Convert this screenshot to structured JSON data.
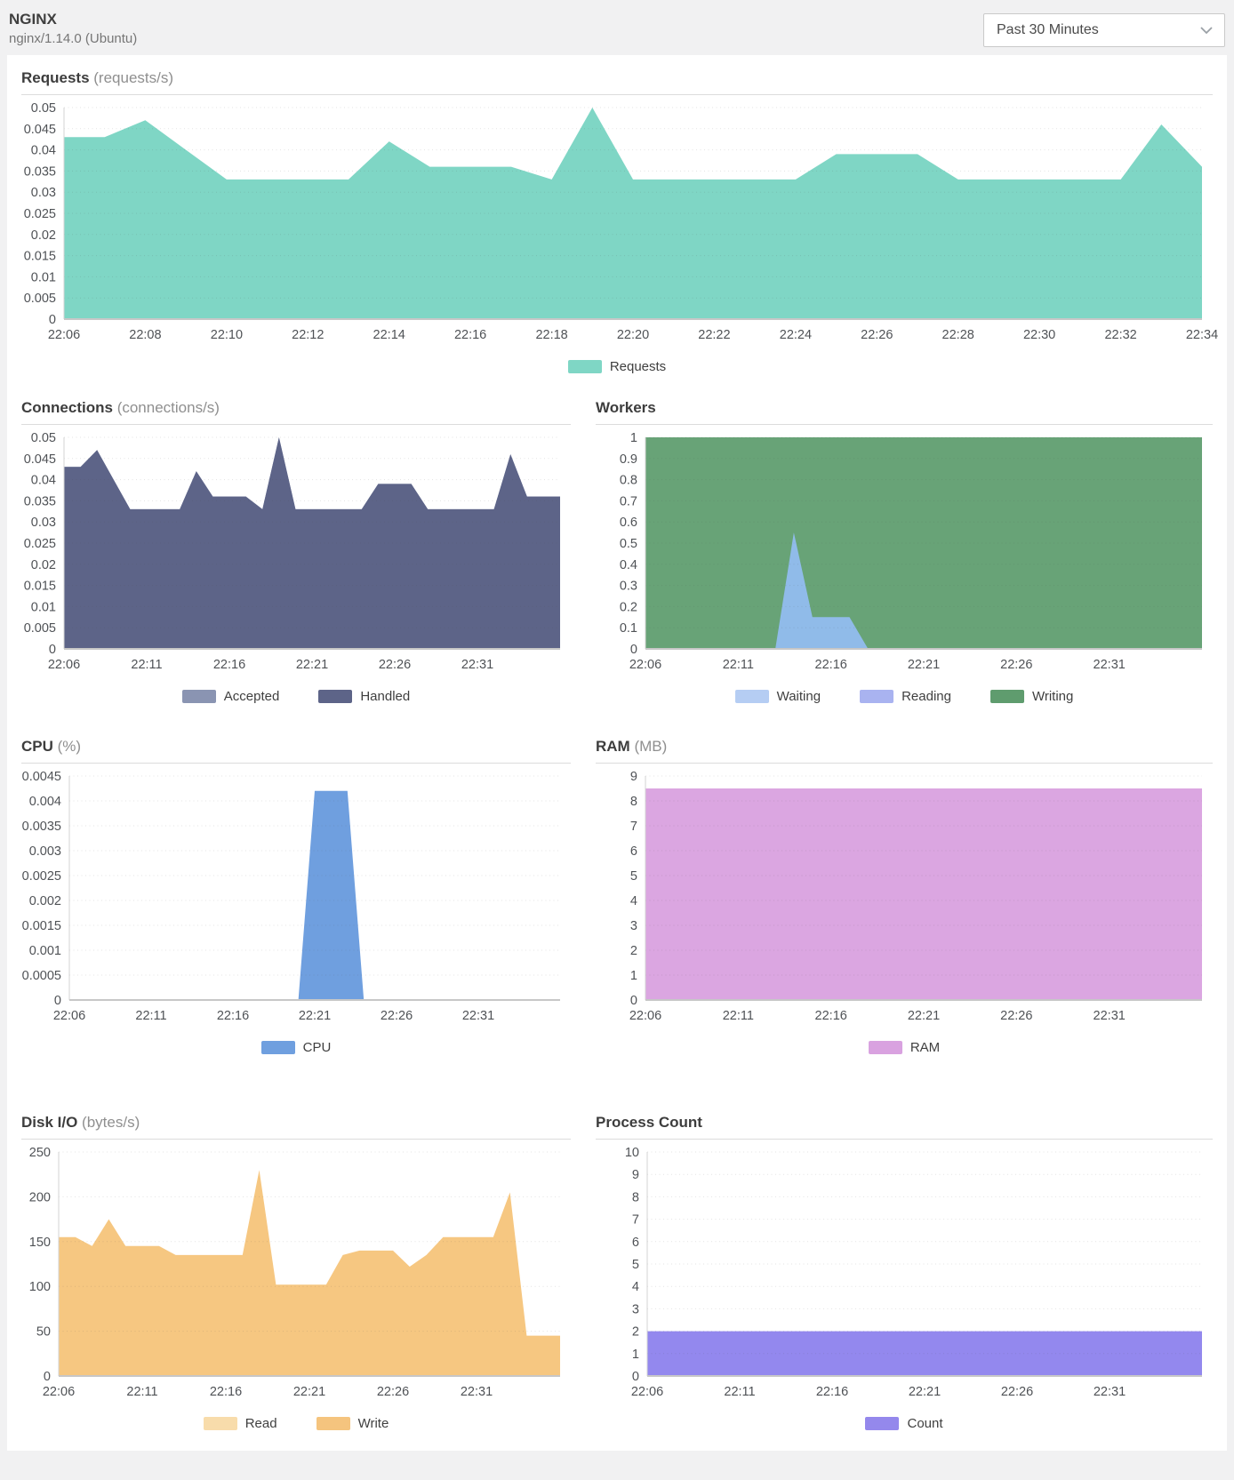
{
  "header": {
    "title": "NGINX",
    "subtitle": "nginx/1.14.0 (Ubuntu)",
    "time_range": "Past 30 Minutes"
  },
  "colors": {
    "page_background": "#f1f1f2",
    "panel_background": "#ffffff",
    "requests_teal": "#7fd6c5",
    "handled_slate": "#5d6488",
    "accepted_slate_light": "#8a94b2",
    "writing_green": "#68a377",
    "waiting_blue": "#90bbe9",
    "reading_periwinkle": "#a9b3f0",
    "cpu_blue": "#6f9fdf",
    "ram_orchid": "#dba6e1",
    "disk_orange": "#f6c781",
    "disk_read_light": "#f8dcab",
    "count_purple": "#9388ee"
  },
  "charts": [
    {
      "id": "requests",
      "type": "area",
      "title": "Requests",
      "unit": "(requests/s)",
      "x_start": "22:06",
      "x_step_minutes": 1,
      "x_labels": [
        "22:06",
        "22:08",
        "22:10",
        "22:12",
        "22:14",
        "22:16",
        "22:18",
        "22:20",
        "22:22",
        "22:24",
        "22:26",
        "22:28",
        "22:30",
        "22:32",
        "22:34"
      ],
      "y_ticks": [
        "0.05",
        "0.045",
        "0.04",
        "0.035",
        "0.03",
        "0.025",
        "0.02",
        "0.015",
        "0.01",
        "0.005",
        "0"
      ],
      "y_max": 0.05,
      "grid": true,
      "series": [
        {
          "name": "Requests",
          "color": "#7fd6c5",
          "values": [
            0.043,
            0.043,
            0.047,
            0.04,
            0.033,
            0.033,
            0.033,
            0.033,
            0.042,
            0.036,
            0.036,
            0.036,
            0.033,
            0.05,
            0.033,
            0.033,
            0.033,
            0.033,
            0.033,
            0.039,
            0.039,
            0.039,
            0.033,
            0.033,
            0.033,
            0.033,
            0.033,
            0.046,
            0.036
          ]
        }
      ],
      "legend": [
        {
          "label": "Requests",
          "color": "#7fd6c5"
        }
      ]
    },
    {
      "id": "connections",
      "type": "area",
      "title": "Connections",
      "unit": "(connections/s)",
      "x_start": "22:06",
      "x_step_minutes": 1,
      "x_labels": [
        "22:06",
        "22:11",
        "22:16",
        "22:21",
        "22:26",
        "22:31"
      ],
      "y_ticks": [
        "0.05",
        "0.045",
        "0.04",
        "0.035",
        "0.03",
        "0.025",
        "0.02",
        "0.015",
        "0.01",
        "0.005",
        "0"
      ],
      "y_max": 0.05,
      "grid": true,
      "series": [
        {
          "name": "Accepted",
          "color": "#8a94b2",
          "values": [
            0.043,
            0.043,
            0.047,
            0.04,
            0.033,
            0.033,
            0.033,
            0.033,
            0.042,
            0.036,
            0.036,
            0.036,
            0.033,
            0.05,
            0.033,
            0.033,
            0.033,
            0.033,
            0.033,
            0.039,
            0.039,
            0.039,
            0.033,
            0.033,
            0.033,
            0.033,
            0.033,
            0.046,
            0.036
          ]
        },
        {
          "name": "Handled",
          "color": "#5d6488",
          "values": [
            0.043,
            0.043,
            0.047,
            0.04,
            0.033,
            0.033,
            0.033,
            0.033,
            0.042,
            0.036,
            0.036,
            0.036,
            0.033,
            0.05,
            0.033,
            0.033,
            0.033,
            0.033,
            0.033,
            0.039,
            0.039,
            0.039,
            0.033,
            0.033,
            0.033,
            0.033,
            0.033,
            0.046,
            0.036
          ]
        }
      ],
      "legend": [
        {
          "label": "Accepted",
          "color": "#8a94b2"
        },
        {
          "label": "Handled",
          "color": "#5d6488"
        }
      ]
    },
    {
      "id": "workers",
      "type": "area",
      "title": "Workers",
      "unit": "",
      "x_start": "22:06",
      "x_step_minutes": 1,
      "x_labels": [
        "22:06",
        "22:11",
        "22:16",
        "22:21",
        "22:26",
        "22:31"
      ],
      "y_ticks": [
        "1",
        "0.9",
        "0.8",
        "0.7",
        "0.6",
        "0.5",
        "0.4",
        "0.3",
        "0.2",
        "0.1",
        "0"
      ],
      "y_max": 1,
      "grid": true,
      "series": [
        {
          "name": "Writing",
          "color": "#68a377",
          "values": [
            1,
            1,
            1,
            1,
            1,
            1,
            1,
            1,
            1,
            1,
            1,
            1,
            1,
            1,
            1,
            1,
            1,
            1,
            1,
            1,
            1,
            1,
            1,
            1,
            1,
            1,
            1,
            1,
            1
          ]
        },
        {
          "name": "Reading",
          "color": "#a9b3f0",
          "values": [
            0,
            0,
            0,
            0,
            0,
            0,
            0,
            0,
            0,
            0,
            0,
            0,
            0,
            0,
            0,
            0,
            0,
            0,
            0,
            0,
            0,
            0,
            0,
            0,
            0,
            0,
            0,
            0,
            0
          ]
        },
        {
          "name": "Waiting",
          "color": "#90bbe9",
          "values": [
            0,
            0,
            0,
            0,
            0,
            0,
            0,
            0,
            0.55,
            0.15,
            0.15,
            0.15,
            0,
            0,
            0,
            0,
            0,
            0,
            0,
            0,
            0,
            0,
            0,
            0,
            0,
            0,
            0,
            0,
            0
          ]
        }
      ],
      "legend": [
        {
          "label": "Waiting",
          "color": "#b5cdf3"
        },
        {
          "label": "Reading",
          "color": "#a9b3f0"
        },
        {
          "label": "Writing",
          "color": "#5f9c6e"
        }
      ]
    },
    {
      "id": "cpu",
      "type": "area",
      "title": "CPU",
      "unit": "(%)",
      "x_start": "22:06",
      "x_step_minutes": 1,
      "x_labels": [
        "22:06",
        "22:11",
        "22:16",
        "22:21",
        "22:26",
        "22:31"
      ],
      "y_ticks": [
        "0.0045",
        "0.004",
        "0.0035",
        "0.003",
        "0.0025",
        "0.002",
        "0.0015",
        "0.001",
        "0.0005",
        "0"
      ],
      "y_max": 0.0045,
      "grid": true,
      "series": [
        {
          "name": "CPU",
          "color": "#6f9fdf",
          "values": [
            0,
            0,
            0,
            0,
            0,
            0,
            0,
            0,
            0,
            0,
            0,
            0,
            0,
            0,
            0,
            0.0042,
            0.0042,
            0.0042,
            0,
            0,
            0,
            0,
            0,
            0,
            0,
            0,
            0,
            0,
            0
          ]
        }
      ],
      "legend": [
        {
          "label": "CPU",
          "color": "#6f9fdf"
        }
      ]
    },
    {
      "id": "ram",
      "type": "area",
      "title": "RAM",
      "unit": "(MB)",
      "x_start": "22:06",
      "x_step_minutes": 1,
      "x_labels": [
        "22:06",
        "22:11",
        "22:16",
        "22:21",
        "22:26",
        "22:31"
      ],
      "y_ticks": [
        "9",
        "8",
        "7",
        "6",
        "5",
        "4",
        "3",
        "2",
        "1",
        "0"
      ],
      "y_max": 9,
      "grid": true,
      "series": [
        {
          "name": "RAM",
          "color": "#dba6e1",
          "values": [
            8.5,
            8.5,
            8.5,
            8.5,
            8.5,
            8.5,
            8.5,
            8.5,
            8.5,
            8.5,
            8.5,
            8.5,
            8.5,
            8.5,
            8.5,
            8.5,
            8.5,
            8.5,
            8.5,
            8.5,
            8.5,
            8.5,
            8.5,
            8.5,
            8.5,
            8.5,
            8.5,
            8.5,
            8.5
          ]
        }
      ],
      "legend": [
        {
          "label": "RAM",
          "color": "#d9a2e0"
        }
      ]
    },
    {
      "id": "disk",
      "type": "area",
      "title": "Disk I/O",
      "unit": "(bytes/s)",
      "x_start": "22:06",
      "x_step_minutes": 1,
      "x_labels": [
        "22:06",
        "22:11",
        "22:16",
        "22:21",
        "22:26",
        "22:31"
      ],
      "y_ticks": [
        "250",
        "200",
        "150",
        "100",
        "50",
        "0"
      ],
      "y_max": 250,
      "grid": true,
      "series": [
        {
          "name": "Read",
          "color": "#f8dcab",
          "values": [
            0,
            0,
            0,
            0,
            0,
            0,
            0,
            0,
            0,
            0,
            0,
            0,
            0,
            0,
            0,
            0,
            0,
            0,
            0,
            0,
            0,
            0,
            0,
            0,
            0,
            0,
            0,
            0,
            0
          ]
        },
        {
          "name": "Write",
          "color": "#f6c781",
          "values": [
            155,
            155,
            145,
            175,
            145,
            145,
            145,
            135,
            135,
            135,
            135,
            135,
            230,
            102,
            102,
            102,
            102,
            135,
            140,
            140,
            140,
            122,
            135,
            155,
            155,
            155,
            155,
            205,
            45
          ]
        }
      ],
      "legend": [
        {
          "label": "Read",
          "color": "#f8dcab"
        },
        {
          "label": "Write",
          "color": "#f5c47e"
        }
      ]
    },
    {
      "id": "count",
      "type": "area",
      "title": "Process Count",
      "unit": "",
      "x_start": "22:06",
      "x_step_minutes": 1,
      "x_labels": [
        "22:06",
        "22:11",
        "22:16",
        "22:21",
        "22:26",
        "22:31"
      ],
      "y_ticks": [
        "10",
        "9",
        "8",
        "7",
        "6",
        "5",
        "4",
        "3",
        "2",
        "1",
        "0"
      ],
      "y_max": 10,
      "grid": true,
      "series": [
        {
          "name": "Count",
          "color": "#9388ee",
          "values": [
            2,
            2,
            2,
            2,
            2,
            2,
            2,
            2,
            2,
            2,
            2,
            2,
            2,
            2,
            2,
            2,
            2,
            2,
            2,
            2,
            2,
            2,
            2,
            2,
            2,
            2,
            2,
            2,
            2
          ]
        }
      ],
      "legend": [
        {
          "label": "Count",
          "color": "#9488ec"
        }
      ]
    }
  ]
}
